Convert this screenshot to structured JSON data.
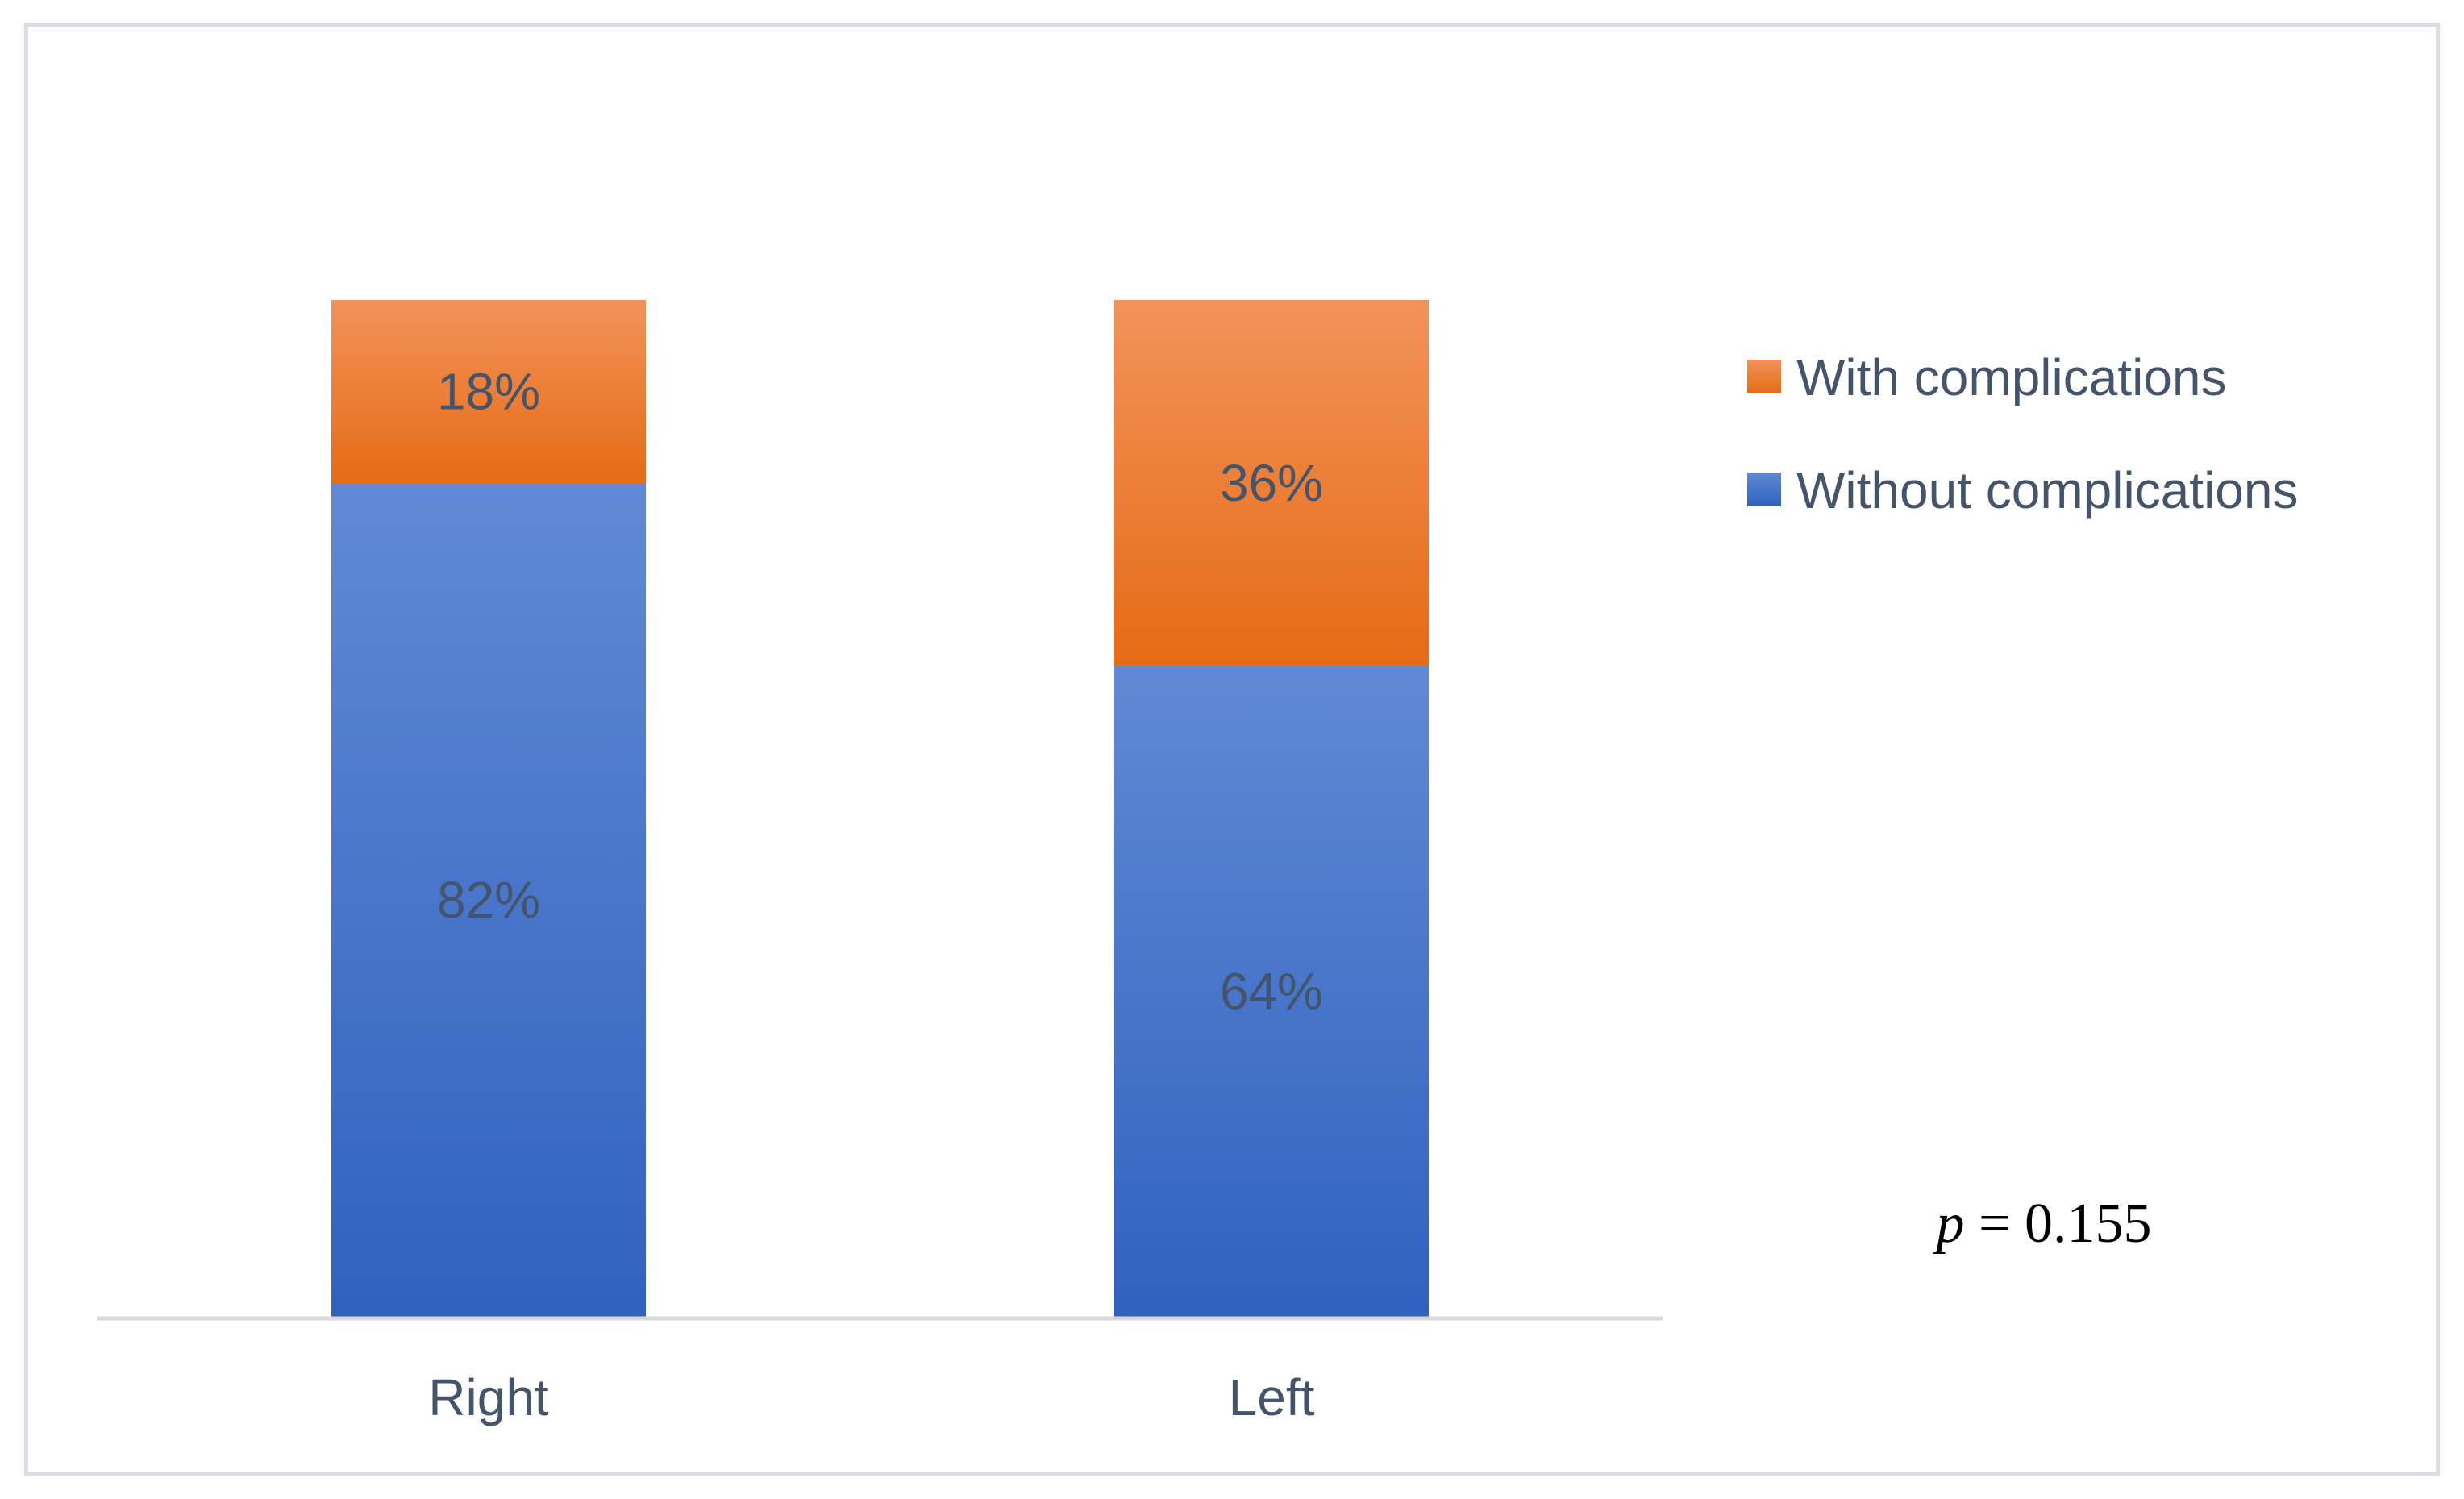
{
  "chart_data": {
    "type": "bar",
    "stacked": true,
    "percent_stacked": true,
    "categories": [
      "Right",
      "Left"
    ],
    "series": [
      {
        "name": "Without complications",
        "values": [
          82,
          64
        ],
        "labels": [
          "82%",
          "64%"
        ],
        "color": "#3a6cc9"
      },
      {
        "name": "With complications",
        "values": [
          18,
          36
        ],
        "labels": [
          "18%",
          "36%"
        ],
        "color": "#ef7d2e"
      }
    ],
    "ylim": [
      0,
      100
    ],
    "y_axis_visible": false,
    "grid": false,
    "legend": {
      "position": "right",
      "entries": [
        "With complications",
        "Without complications"
      ]
    },
    "annotation": {
      "italic": "p",
      "text": " = 0.155"
    }
  }
}
